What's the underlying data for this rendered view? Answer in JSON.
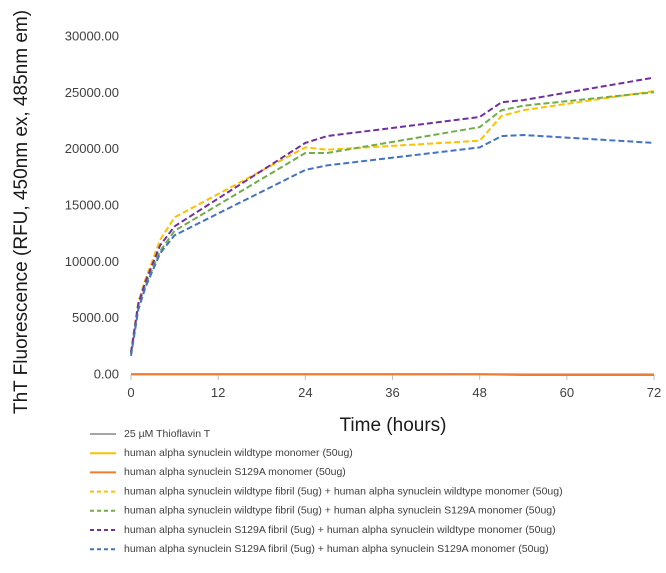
{
  "chart_data": {
    "type": "line",
    "xlabel": "Time (hours)",
    "ylabel": "ThT Fluorescence (RFU, 450nm ex, 485nm em)",
    "xlim": [
      0,
      72
    ],
    "ylim": [
      0,
      30000
    ],
    "x_ticks": [
      0,
      12,
      24,
      36,
      48,
      60,
      72
    ],
    "x_tick_labels": [
      "0",
      "12",
      "24",
      "36",
      "48",
      "60",
      "72"
    ],
    "y_ticks": [
      0,
      5000,
      10000,
      15000,
      20000,
      25000,
      30000
    ],
    "y_tick_labels": [
      "0.00",
      "5000.00",
      "10000.00",
      "15000.00",
      "20000.00",
      "25000.00",
      "30000.00"
    ],
    "grid": false,
    "legend_position": "bottom",
    "series": [
      {
        "name": "25 µM Thioflavin T",
        "color": "#a5a5a5",
        "dash": "solid",
        "x": [
          0,
          24,
          48,
          54,
          72
        ],
        "y": [
          60,
          60,
          60,
          60,
          60
        ]
      },
      {
        "name": "human alpha synuclein wildtype monomer (50ug)",
        "color": "#ffc000",
        "dash": "solid",
        "x": [
          0,
          24,
          48,
          54,
          72
        ],
        "y": [
          80,
          80,
          70,
          60,
          60
        ]
      },
      {
        "name": "human alpha synuclein S129A monomer (50ug)",
        "color": "#ed7d31",
        "dash": "solid",
        "x": [
          0,
          24,
          48,
          54,
          72
        ],
        "y": [
          60,
          60,
          60,
          0,
          0
        ]
      },
      {
        "name": "human alpha synuclein wildtype fibril (5ug) + human alpha synuclein wildtype monomer (50ug)",
        "color": "#ffc000",
        "dash": "dashed",
        "x": [
          0,
          1,
          2,
          4,
          6,
          24,
          27,
          48,
          51,
          54,
          72
        ],
        "y": [
          2000,
          6500,
          8500,
          12000,
          14000,
          20200,
          20000,
          20800,
          23000,
          23500,
          25200
        ]
      },
      {
        "name": "human alpha synuclein wildtype fibril (5ug) + human alpha synuclein S129A monomer (50ug)",
        "color": "#70ad47",
        "dash": "dashed",
        "x": [
          0,
          1,
          2,
          4,
          6,
          24,
          27,
          48,
          51,
          54,
          72
        ],
        "y": [
          1900,
          6200,
          8000,
          11000,
          12800,
          19700,
          19700,
          22000,
          23500,
          23900,
          25100
        ]
      },
      {
        "name": "human alpha synuclein S129A fibril (5ug) + human alpha synuclein wildtype monomer (50ug)",
        "color": "#7030a0",
        "dash": "dashed",
        "x": [
          0,
          1,
          2,
          4,
          6,
          24,
          27,
          48,
          51,
          54,
          72
        ],
        "y": [
          2000,
          6300,
          8300,
          11500,
          13200,
          20600,
          21200,
          22900,
          24200,
          24400,
          26400
        ]
      },
      {
        "name": "human alpha synuclein S129A fibril (5ug) + human alpha synuclein S129A monomer (50ug)",
        "color": "#4472c4",
        "dash": "dashed",
        "x": [
          0,
          1,
          2,
          4,
          6,
          24,
          27,
          48,
          51,
          54,
          72
        ],
        "y": [
          1700,
          5800,
          7800,
          10800,
          12400,
          18200,
          18600,
          20200,
          21200,
          21300,
          20600
        ]
      }
    ]
  }
}
